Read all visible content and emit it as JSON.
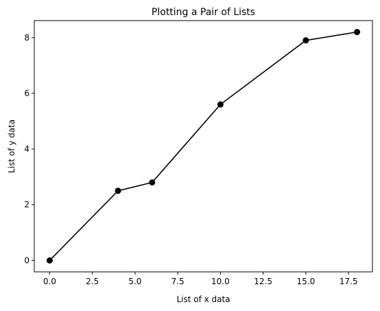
{
  "chart_data": {
    "type": "line",
    "title": "Plotting a Pair of Lists",
    "xlabel": "List of x data",
    "ylabel": "List of y data",
    "x": [
      0,
      4,
      6,
      10,
      15,
      18
    ],
    "y": [
      0,
      2.5,
      2.8,
      5.6,
      7.9,
      8.2
    ],
    "xlim": [
      -0.9,
      18.9
    ],
    "ylim": [
      -0.41,
      8.61
    ],
    "xticks": [
      0.0,
      2.5,
      5.0,
      7.5,
      10.0,
      12.5,
      15.0,
      17.5
    ],
    "xtick_labels": [
      "0.0",
      "2.5",
      "5.0",
      "7.5",
      "10.0",
      "12.5",
      "15.0",
      "17.5"
    ],
    "yticks": [
      0,
      2,
      4,
      6,
      8
    ],
    "ytick_labels": [
      "0",
      "2",
      "4",
      "6",
      "8"
    ],
    "grid": false,
    "line_color": "#000000",
    "marker": "circle",
    "marker_color": "#000000"
  }
}
